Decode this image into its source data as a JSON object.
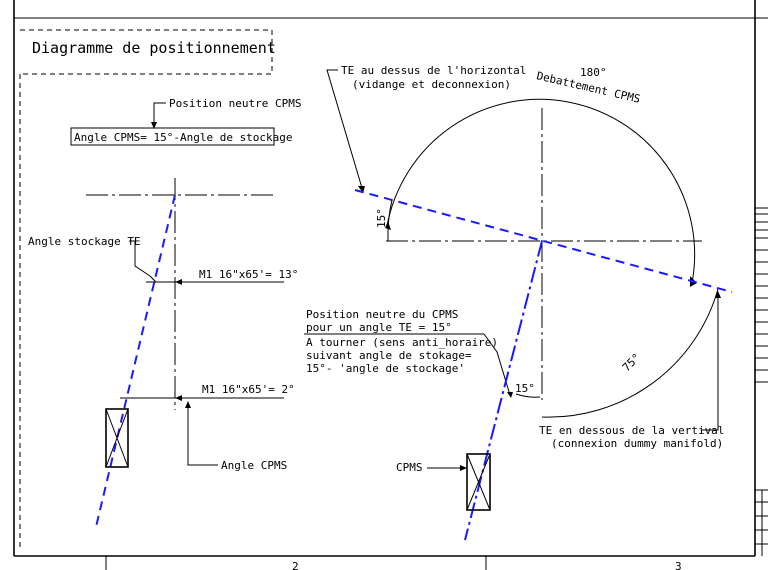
{
  "title": "Diagramme de positionnement",
  "left": {
    "neutral_label": "Position neutre CPMS",
    "formula": "Angle CPMS= 15°-Angle de stockage",
    "storage_angle_label": "Angle stockage TE",
    "dim_top": "M1 16\"x65'= 13°",
    "dim_bottom": "M1 16\"x65'= 2°",
    "cpms_angle_label": "Angle CPMS"
  },
  "right": {
    "te_above": "TE au dessus de l'horizontal",
    "te_above_sub": "(vidange et deconnexion)",
    "arc_deg": "180°",
    "arc_label": "Debattement CPMS",
    "angle_15_left": "15°",
    "angle_75": "75°",
    "angle_15_bottom": "15°",
    "neutral_lines": [
      "Position neutre du CPMS",
      "pour un angle TE = 15°",
      "A tourner (sens anti_horaire)",
      "suivant angle de stokage=",
      "15°- 'angle de stockage'"
    ],
    "te_below": "TE en dessous de la vertival",
    "te_below_sub": "(connexion dummy manifold)",
    "cpms_label": "CPMS"
  },
  "frame": {
    "zone_2": "2",
    "zone_3": "3"
  }
}
